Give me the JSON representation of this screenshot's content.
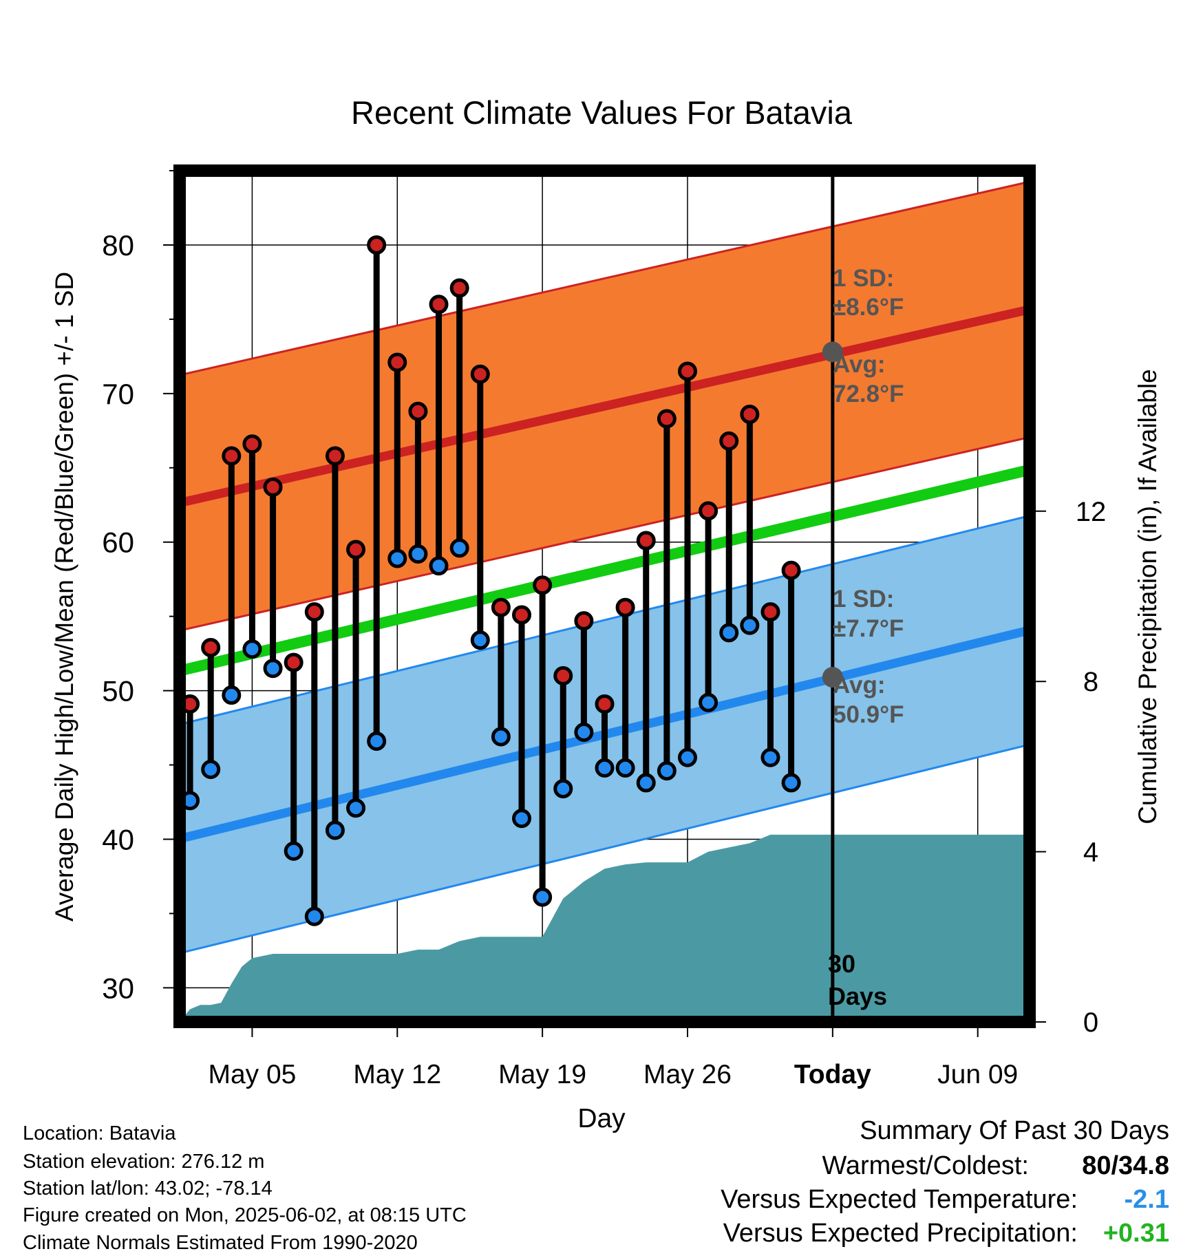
{
  "chart_data": {
    "type": "line",
    "title": "Recent Climate Values For Batavia",
    "xlabel": "Day",
    "ylabel": "Average Daily High/Low/Mean (Red/Blue/Green) +/- 1 SD",
    "y2label": "Cumulative Precipitation (in), If Available",
    "x_tick_labels": [
      "May 05",
      "May 12",
      "May 19",
      "May 26",
      "Today",
      "Jun 09"
    ],
    "x_tick_days": [
      4,
      11,
      18,
      25,
      32,
      39
    ],
    "xlim": [
      0.5,
      41.5
    ],
    "ylim": [
      27.7,
      85
    ],
    "y_ticks": [
      30,
      40,
      50,
      60,
      70,
      80
    ],
    "y2lim": [
      0,
      20
    ],
    "y2_ticks": [
      0,
      4,
      8,
      12
    ],
    "grid": true,
    "normals": {
      "days": [
        1,
        41
      ],
      "high_avg": [
        62.8,
        75.5
      ],
      "high_sd": 8.6,
      "mean_avg": [
        51.5,
        64.7
      ],
      "low_avg": [
        40.2,
        53.9
      ],
      "low_sd": 7.7
    },
    "series": [
      {
        "name": "High",
        "color": "#cc2222",
        "x": [
          1,
          2,
          3,
          4,
          5,
          6,
          7,
          8,
          9,
          10,
          11,
          12,
          13,
          14,
          15,
          16,
          17,
          18,
          19,
          20,
          21,
          22,
          23,
          24,
          25,
          26,
          27,
          28,
          29,
          30,
          31
        ],
        "values": [
          49.1,
          52.9,
          65.8,
          66.6,
          63.7,
          51.9,
          55.3,
          65.8,
          59.5,
          80.0,
          72.1,
          68.8,
          76.0,
          77.1,
          71.3,
          55.6,
          55.1,
          57.1,
          51.0,
          54.7,
          49.1,
          55.6,
          60.1,
          68.3,
          71.5,
          62.1,
          66.8,
          68.6,
          55.3,
          58.1,
          null
        ]
      },
      {
        "name": "Low",
        "color": "#2288ee",
        "x": [
          1,
          2,
          3,
          4,
          5,
          6,
          7,
          8,
          9,
          10,
          11,
          12,
          13,
          14,
          15,
          16,
          17,
          18,
          19,
          20,
          21,
          22,
          23,
          24,
          25,
          26,
          27,
          28,
          29,
          30,
          31
        ],
        "values": [
          42.6,
          44.7,
          49.7,
          52.8,
          51.5,
          39.2,
          34.8,
          40.6,
          42.1,
          46.6,
          58.9,
          59.2,
          58.4,
          59.6,
          53.4,
          46.9,
          41.4,
          36.1,
          43.4,
          47.2,
          44.8,
          44.8,
          43.8,
          44.6,
          45.5,
          49.2,
          53.9,
          54.4,
          45.5,
          43.8,
          null
        ]
      }
    ],
    "precipitation": {
      "x": [
        0.5,
        1,
        1.5,
        2,
        2.5,
        3,
        3.5,
        4,
        5,
        6,
        7,
        8,
        9,
        10,
        11,
        12,
        13,
        14,
        15,
        16,
        17,
        18,
        19,
        20,
        21,
        22,
        23,
        24,
        25,
        26,
        27,
        28,
        29,
        30,
        31,
        32,
        33,
        41.5
      ],
      "values": [
        0,
        0.3,
        0.4,
        0.4,
        0.45,
        0.9,
        1.3,
        1.5,
        1.6,
        1.6,
        1.6,
        1.6,
        1.6,
        1.6,
        1.6,
        1.7,
        1.7,
        1.9,
        2.0,
        2.0,
        2.0,
        2.0,
        2.9,
        3.3,
        3.6,
        3.7,
        3.75,
        3.75,
        3.75,
        4.0,
        4.1,
        4.2,
        4.4,
        4.4,
        4.4,
        4.4,
        4.4,
        4.4
      ]
    },
    "annotations": {
      "high_sd_line1": "1 SD:",
      "high_sd_line2": "±8.6°F",
      "high_avg_line1": "Avg:",
      "high_avg_line2": "72.8°F",
      "low_sd_line1": "1 SD:",
      "low_sd_line2": "±7.7°F",
      "low_avg_line1": "Avg:",
      "low_avg_line2": "50.9°F",
      "days_line1": "30",
      "days_line2": "Days"
    },
    "markers": {
      "today_day": 32,
      "today_high_avg": 72.8,
      "today_low_avg": 50.9
    }
  },
  "info": {
    "location": "Location: Batavia",
    "elevation": "Station elevation: 276.12 m",
    "latlon": "Station lat/lon: 43.02; -78.14",
    "created": "Figure created on Mon, 2025-06-02, at 08:15 UTC",
    "normals": "Climate Normals Estimated From 1990-2020"
  },
  "summary": {
    "title": "Summary Of Past 30 Days",
    "warmest_label": "Warmest/Coldest:",
    "warmest_value": "80/34.8",
    "temp_label": "Versus Expected Temperature:",
    "temp_value": "-2.1",
    "precip_label": "Versus Expected Precipitation:",
    "precip_value": "+0.31"
  },
  "colors": {
    "high_band": "#f47a30",
    "high_line": "#cc2222",
    "mean_line": "#11cc11",
    "low_band": "#86c2e9",
    "low_line": "#2288ee",
    "precip": "#4b9aa3",
    "temp_delta": "#2a8fe8",
    "precip_delta": "#22b322",
    "annotation": "#555555"
  }
}
